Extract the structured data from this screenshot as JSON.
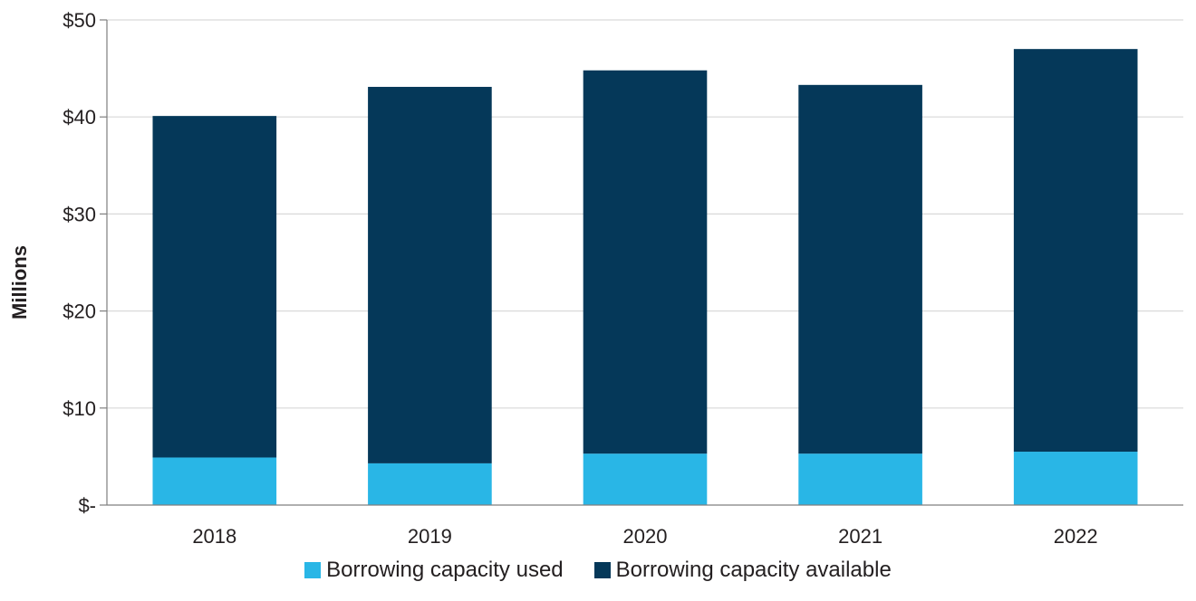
{
  "chart_data": {
    "type": "bar",
    "stacked": true,
    "categories": [
      "2018",
      "2019",
      "2020",
      "2021",
      "2022"
    ],
    "series": [
      {
        "name": "Borrowing capacity used",
        "color": "#29b6e6",
        "values": [
          4.9,
          4.3,
          5.3,
          5.3,
          5.5
        ]
      },
      {
        "name": "Borrowing capacity available",
        "color": "#053859",
        "values": [
          35.2,
          38.8,
          39.5,
          38.0,
          41.5
        ]
      }
    ],
    "ylabel": "Millions",
    "ylim": [
      0,
      50
    ],
    "yticks": [
      0,
      10,
      20,
      30,
      40,
      50
    ],
    "ytick_labels": [
      "$-",
      "$10",
      "$20",
      "$30",
      "$40",
      "$50"
    ],
    "grid": true,
    "legend_position": "bottom"
  }
}
